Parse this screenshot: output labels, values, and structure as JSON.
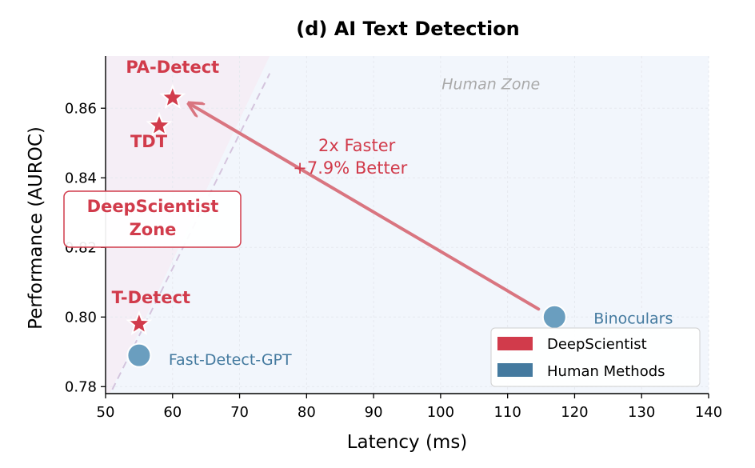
{
  "chart_data": {
    "type": "scatter",
    "title": "(d) AI Text Detection",
    "xlabel": "Latency (ms)",
    "ylabel": "Performance (AUROC)",
    "xlim": [
      50,
      140
    ],
    "ylim": [
      0.778,
      0.875
    ],
    "xticks": [
      50,
      60,
      70,
      80,
      90,
      100,
      110,
      120,
      130,
      140
    ],
    "yticks": [
      0.78,
      0.8,
      0.82,
      0.84,
      0.86
    ],
    "ytick_labels": [
      "0.78",
      "0.80",
      "0.82",
      "0.84",
      "0.86"
    ],
    "grid": true,
    "series": [
      {
        "name": "DeepScientist",
        "marker": "star",
        "color": "#d13b4b",
        "points": [
          {
            "label": "PA-Detect",
            "x": 60,
            "y": 0.863
          },
          {
            "label": "TDT",
            "x": 58,
            "y": 0.855
          },
          {
            "label": "T-Detect",
            "x": 55,
            "y": 0.798
          }
        ]
      },
      {
        "name": "Human Methods",
        "marker": "circle",
        "color": "#6a9ebf",
        "points": [
          {
            "label": "Fast-Detect-GPT",
            "x": 55,
            "y": 0.789
          },
          {
            "label": "Binoculars",
            "x": 117,
            "y": 0.8
          }
        ]
      }
    ],
    "annotations": {
      "improvement_line1": "2x Faster",
      "improvement_line2": "+7.9% Better",
      "arrow_from": {
        "x": 117,
        "y": 0.8
      },
      "arrow_to": {
        "x": 60,
        "y": 0.863
      },
      "human_zone": "Human Zone",
      "ds_zone_line1": "DeepScientist",
      "ds_zone_line2": "Zone"
    },
    "legend": {
      "position": "bottom-right",
      "entries": [
        {
          "label": "DeepScientist",
          "color": "#d13b4b"
        },
        {
          "label": "Human Methods",
          "color": "#447a9f"
        }
      ]
    }
  }
}
